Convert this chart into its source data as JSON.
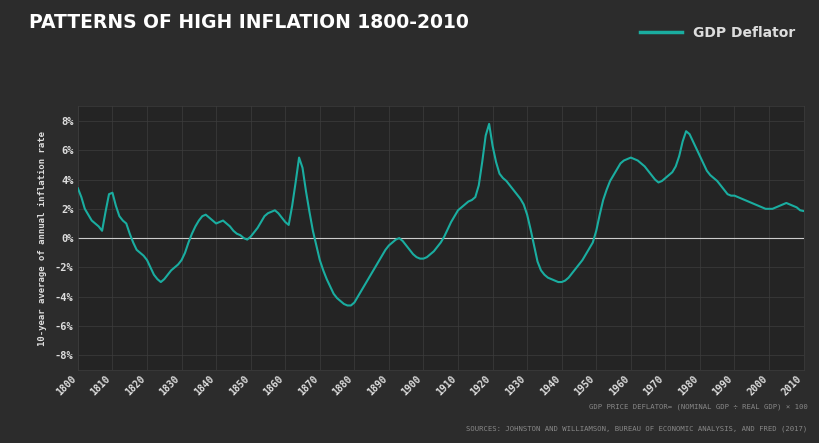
{
  "title": "PATTERNS OF HIGH INFLATION 1800-2010",
  "ylabel": "10-year average of annual inflation rate",
  "legend_label": "GDP Deflator",
  "footnote1": "GDP PRICE DEFLATOR= (NOMINAL GDP ÷ REAL GDP) × 100",
  "footnote2": "SOURCES: JOHNSTON AND WILLIAMSON, BUREAU OF ECONOMIC ANALYSIS, AND FRED (2017)",
  "line_color": "#1aada0",
  "bg_color": "#2c2c2c",
  "axes_bg_color": "#242424",
  "grid_color": "#3d3d3d",
  "text_color": "#dddddd",
  "zero_line_color": "#cccccc",
  "ylim": [
    -9,
    9
  ],
  "yticks": [
    -8,
    -6,
    -4,
    -2,
    0,
    2,
    4,
    6,
    8
  ],
  "xticks": [
    1800,
    1810,
    1820,
    1830,
    1840,
    1850,
    1860,
    1870,
    1880,
    1890,
    1900,
    1910,
    1920,
    1930,
    1940,
    1950,
    1960,
    1970,
    1980,
    1990,
    2000,
    2010
  ],
  "xlim": [
    1800,
    2010
  ],
  "years": [
    1800,
    1801,
    1802,
    1803,
    1804,
    1805,
    1806,
    1807,
    1808,
    1809,
    1810,
    1811,
    1812,
    1813,
    1814,
    1815,
    1816,
    1817,
    1818,
    1819,
    1820,
    1821,
    1822,
    1823,
    1824,
    1825,
    1826,
    1827,
    1828,
    1829,
    1830,
    1831,
    1832,
    1833,
    1834,
    1835,
    1836,
    1837,
    1838,
    1839,
    1840,
    1841,
    1842,
    1843,
    1844,
    1845,
    1846,
    1847,
    1848,
    1849,
    1850,
    1851,
    1852,
    1853,
    1854,
    1855,
    1856,
    1857,
    1858,
    1859,
    1860,
    1861,
    1862,
    1863,
    1864,
    1865,
    1866,
    1867,
    1868,
    1869,
    1870,
    1871,
    1872,
    1873,
    1874,
    1875,
    1876,
    1877,
    1878,
    1879,
    1880,
    1881,
    1882,
    1883,
    1884,
    1885,
    1886,
    1887,
    1888,
    1889,
    1890,
    1891,
    1892,
    1893,
    1894,
    1895,
    1896,
    1897,
    1898,
    1899,
    1900,
    1901,
    1902,
    1903,
    1904,
    1905,
    1906,
    1907,
    1908,
    1909,
    1910,
    1911,
    1912,
    1913,
    1914,
    1915,
    1916,
    1917,
    1918,
    1919,
    1920,
    1921,
    1922,
    1923,
    1924,
    1925,
    1926,
    1927,
    1928,
    1929,
    1930,
    1931,
    1932,
    1933,
    1934,
    1935,
    1936,
    1937,
    1938,
    1939,
    1940,
    1941,
    1942,
    1943,
    1944,
    1945,
    1946,
    1947,
    1948,
    1949,
    1950,
    1951,
    1952,
    1953,
    1954,
    1955,
    1956,
    1957,
    1958,
    1959,
    1960,
    1961,
    1962,
    1963,
    1964,
    1965,
    1966,
    1967,
    1968,
    1969,
    1970,
    1971,
    1972,
    1973,
    1974,
    1975,
    1976,
    1977,
    1978,
    1979,
    1980,
    1981,
    1982,
    1983,
    1984,
    1985,
    1986,
    1987,
    1988,
    1989,
    1990,
    1991,
    1992,
    1993,
    1994,
    1995,
    1996,
    1997,
    1998,
    1999,
    2000,
    2001,
    2002,
    2003,
    2004,
    2005,
    2006,
    2007,
    2008,
    2009,
    2010
  ],
  "values": [
    3.4,
    2.8,
    2.0,
    1.6,
    1.2,
    1.0,
    0.8,
    0.5,
    1.8,
    3.0,
    3.1,
    2.2,
    1.5,
    1.2,
    1.0,
    0.3,
    -0.3,
    -0.8,
    -1.0,
    -1.2,
    -1.5,
    -2.0,
    -2.5,
    -2.8,
    -3.0,
    -2.8,
    -2.5,
    -2.2,
    -2.0,
    -1.8,
    -1.5,
    -1.0,
    -0.3,
    0.3,
    0.8,
    1.2,
    1.5,
    1.6,
    1.4,
    1.2,
    1.0,
    1.1,
    1.2,
    1.0,
    0.8,
    0.5,
    0.3,
    0.2,
    0.0,
    -0.1,
    0.1,
    0.4,
    0.7,
    1.1,
    1.5,
    1.7,
    1.8,
    1.9,
    1.7,
    1.4,
    1.1,
    0.9,
    2.2,
    3.8,
    5.5,
    4.8,
    3.2,
    1.8,
    0.5,
    -0.5,
    -1.5,
    -2.2,
    -2.8,
    -3.3,
    -3.8,
    -4.1,
    -4.3,
    -4.5,
    -4.6,
    -4.6,
    -4.4,
    -4.0,
    -3.6,
    -3.2,
    -2.8,
    -2.4,
    -2.0,
    -1.6,
    -1.2,
    -0.8,
    -0.5,
    -0.3,
    -0.1,
    0.0,
    -0.2,
    -0.5,
    -0.8,
    -1.1,
    -1.3,
    -1.4,
    -1.4,
    -1.3,
    -1.1,
    -0.9,
    -0.6,
    -0.3,
    0.1,
    0.6,
    1.1,
    1.5,
    1.9,
    2.1,
    2.3,
    2.5,
    2.6,
    2.8,
    3.6,
    5.2,
    7.0,
    7.8,
    6.3,
    5.2,
    4.4,
    4.1,
    3.9,
    3.6,
    3.3,
    3.0,
    2.7,
    2.3,
    1.6,
    0.6,
    -0.5,
    -1.6,
    -2.2,
    -2.5,
    -2.7,
    -2.8,
    -2.9,
    -3.0,
    -3.0,
    -2.9,
    -2.7,
    -2.4,
    -2.1,
    -1.8,
    -1.5,
    -1.1,
    -0.7,
    -0.3,
    0.5,
    1.6,
    2.6,
    3.3,
    3.9,
    4.3,
    4.7,
    5.1,
    5.3,
    5.4,
    5.5,
    5.4,
    5.3,
    5.1,
    4.9,
    4.6,
    4.3,
    4.0,
    3.8,
    3.9,
    4.1,
    4.3,
    4.5,
    4.9,
    5.6,
    6.6,
    7.3,
    7.1,
    6.6,
    6.1,
    5.6,
    5.1,
    4.6,
    4.3,
    4.1,
    3.9,
    3.6,
    3.3,
    3.0,
    2.9,
    2.9,
    2.8,
    2.7,
    2.6,
    2.5,
    2.4,
    2.3,
    2.2,
    2.1,
    2.0,
    2.0,
    2.0,
    2.1,
    2.2,
    2.3,
    2.4,
    2.3,
    2.2,
    2.1,
    1.9,
    1.85
  ]
}
